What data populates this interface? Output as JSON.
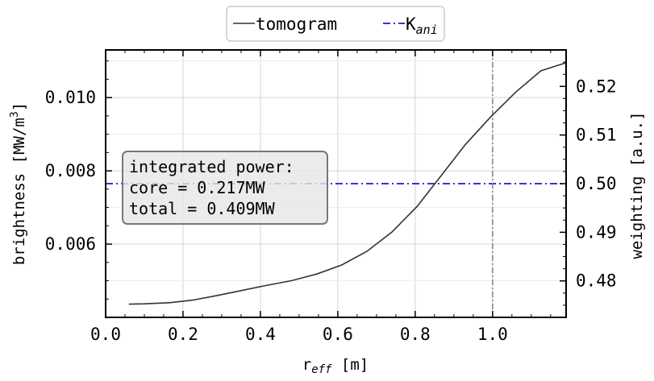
{
  "chart_data": {
    "type": "line",
    "legend": {
      "placement": "top-center",
      "entries": [
        {
          "text": "tomogram",
          "color": "#333333",
          "style": "solid"
        },
        {
          "text": "K",
          "subscript": "ani",
          "color": "#3333dd",
          "style": "dash-dot"
        }
      ]
    },
    "x_axis": {
      "label": "r",
      "label_subscript": "eff",
      "label_suffix": " [m]",
      "range": [
        0.0,
        1.19
      ],
      "ticks": [
        0.0,
        0.2,
        0.4,
        0.6,
        0.8,
        1.0
      ],
      "tick_labels": [
        "0.0",
        "0.2",
        "0.4",
        "0.6",
        "0.8",
        "1.0"
      ]
    },
    "y_axis_left": {
      "label": "brightness [MW/m",
      "label_superscript": "3",
      "label_suffix": "]",
      "range": [
        0.004,
        0.0113
      ],
      "ticks": [
        0.006,
        0.008,
        0.01
      ],
      "tick_labels": [
        "0.006",
        "0.008",
        "0.010"
      ]
    },
    "y_axis_right": {
      "label": "weighting [a.u.]",
      "range": [
        0.4725,
        0.5275
      ],
      "ticks": [
        0.48,
        0.49,
        0.5,
        0.51,
        0.52
      ],
      "tick_labels": [
        "0.48",
        "0.49",
        "0.50",
        "0.51",
        "0.52"
      ]
    },
    "grid": true,
    "series": [
      {
        "name": "tomogram",
        "axis": "left",
        "color": "#333333",
        "x": [
          0.06,
          0.1,
          0.165,
          0.225,
          0.29,
          0.35,
          0.415,
          0.48,
          0.545,
          0.61,
          0.675,
          0.74,
          0.805,
          0.87,
          0.93,
          0.995,
          1.06,
          1.125,
          1.19
        ],
        "y": [
          0.00436,
          0.00437,
          0.0044,
          0.00447,
          0.0046,
          0.00473,
          0.00487,
          0.005,
          0.00518,
          0.00543,
          0.0058,
          0.00633,
          0.00703,
          0.00791,
          0.00872,
          0.00947,
          0.01015,
          0.01073,
          0.01095
        ]
      },
      {
        "name": "K_ani",
        "axis": "right",
        "color": "#3333dd",
        "style": "dash-dot",
        "constant": 0.5
      }
    ],
    "vertical_line": {
      "x": 1.0,
      "color": "#888888",
      "style": "dash-dot"
    },
    "annotation": {
      "lines": [
        "integrated power:",
        "core = 0.217MW",
        "total = 0.409MW"
      ],
      "placement": "middle-left"
    }
  }
}
